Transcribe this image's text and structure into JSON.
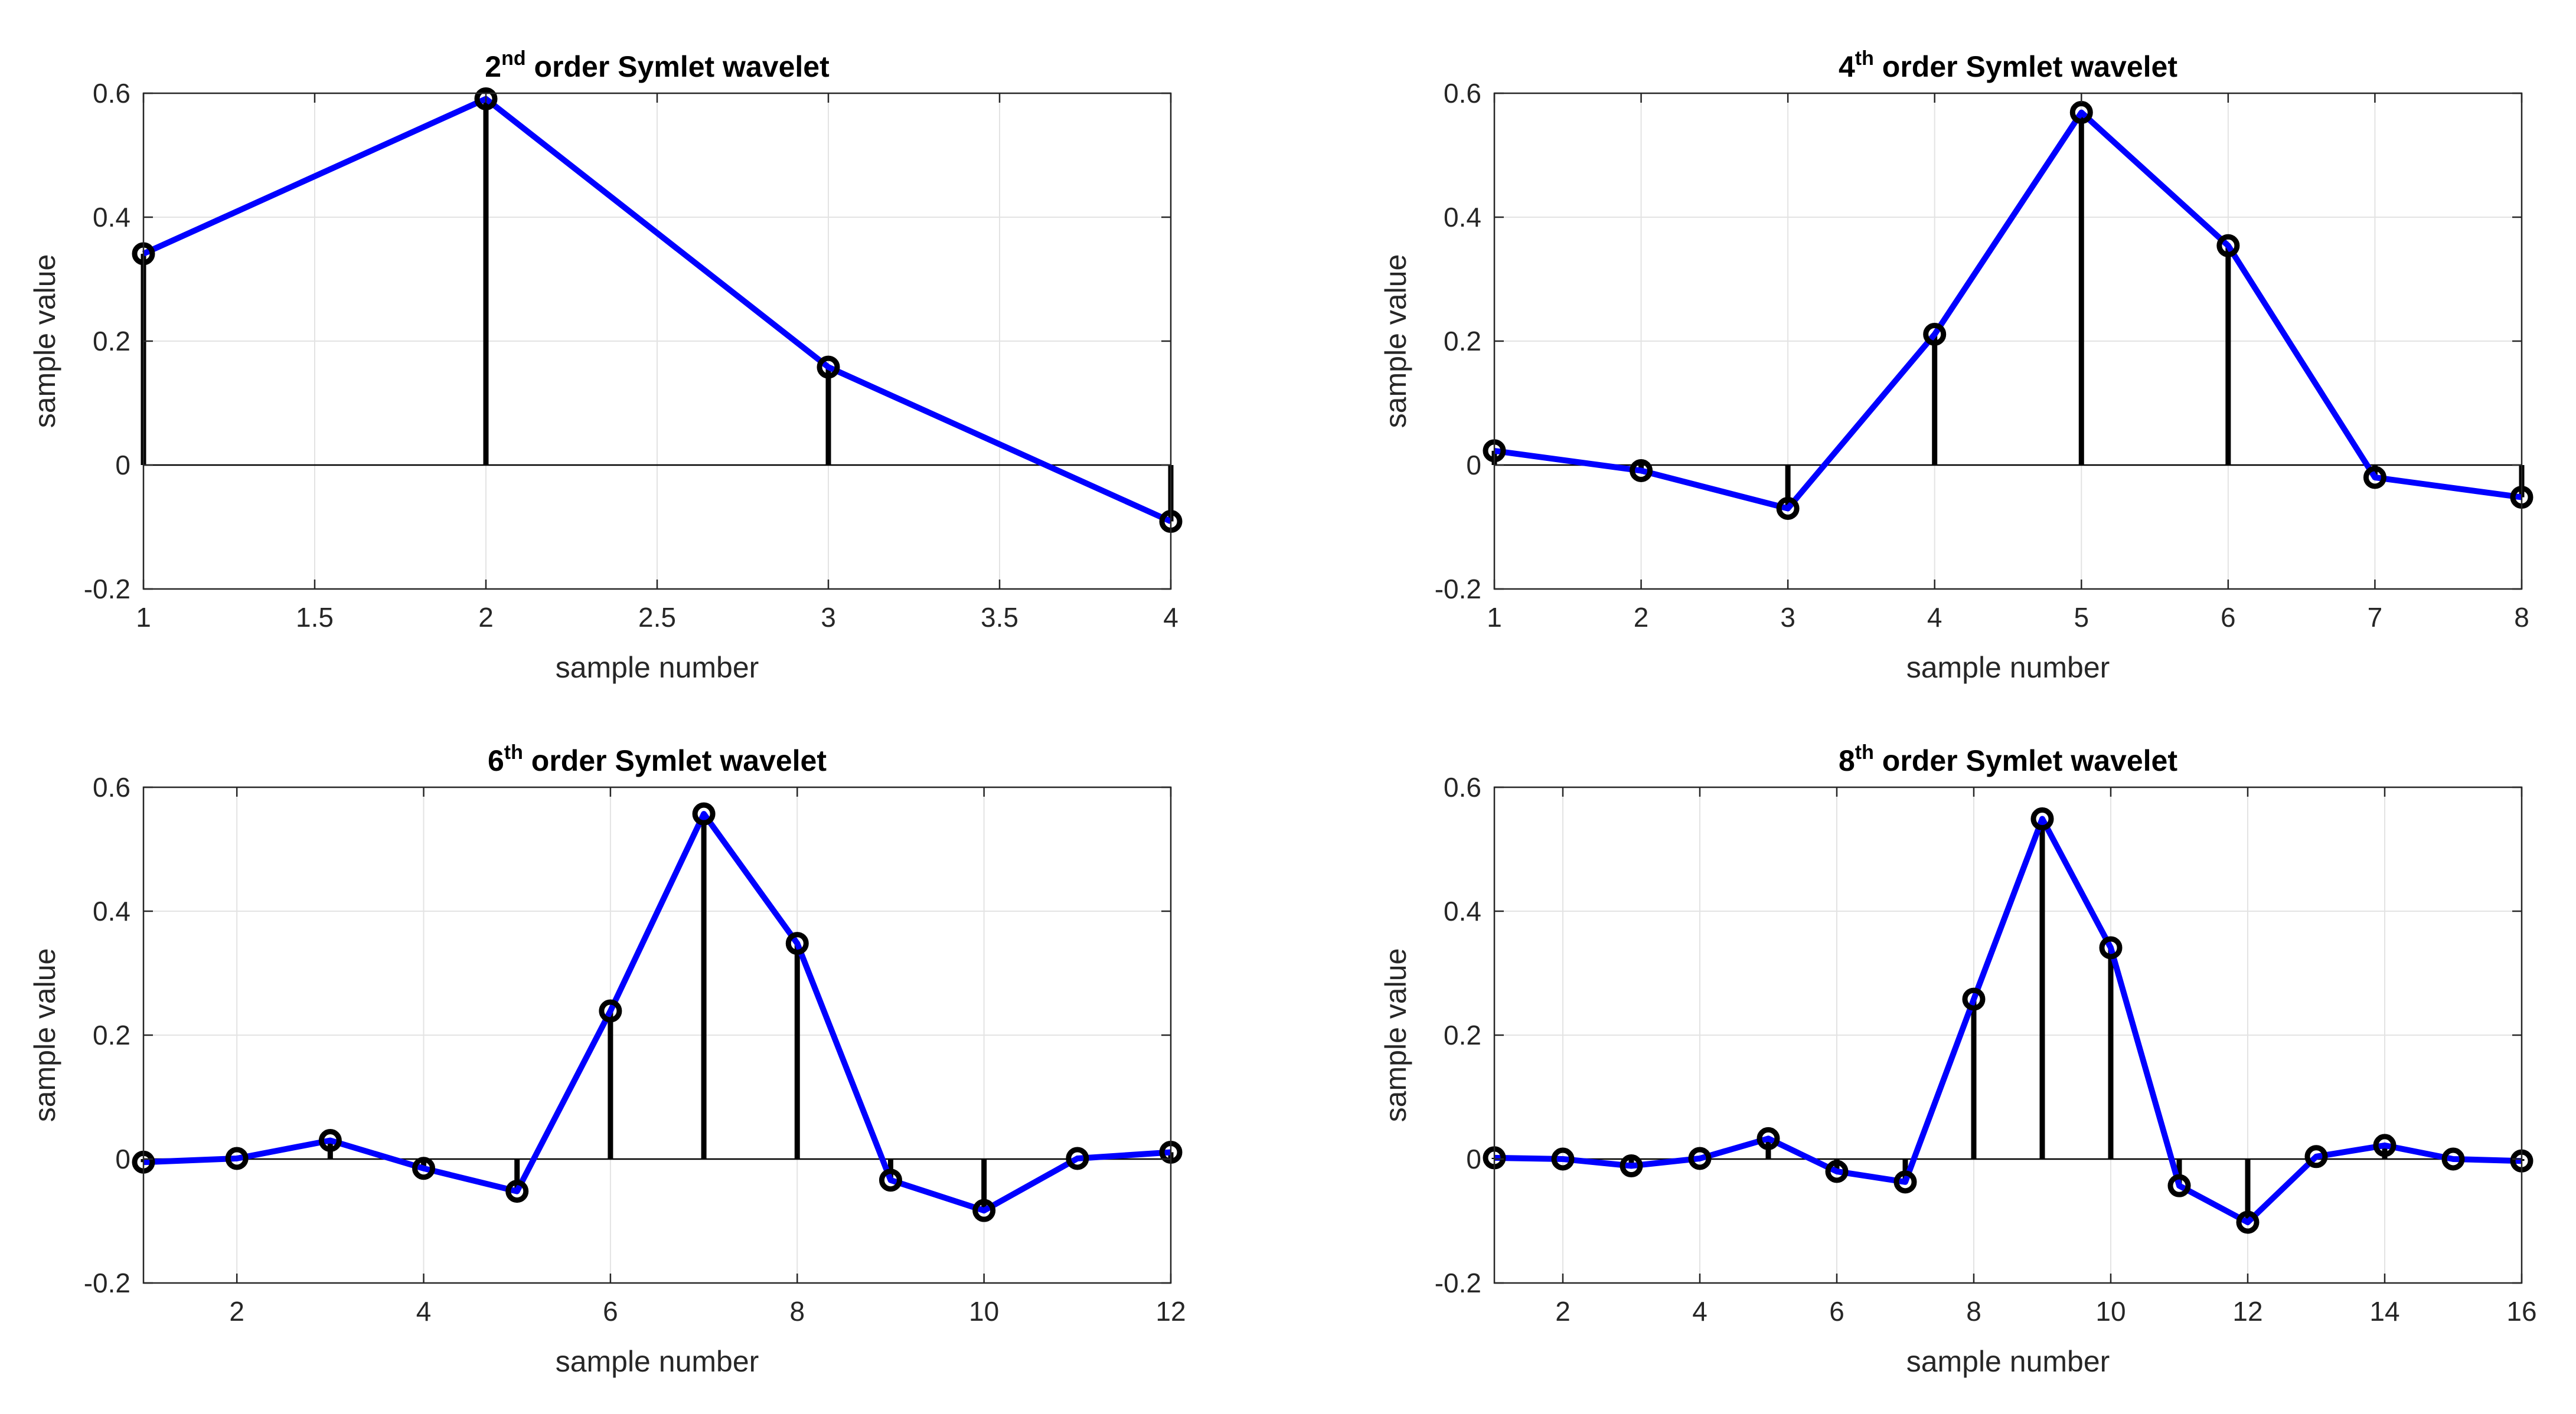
{
  "chart_data": [
    {
      "type": "stem",
      "order_num": "2",
      "order_sup": "nd",
      "title_rest": " order Symlet wavelet",
      "xlabel": "sample number",
      "ylabel": "sample value",
      "xlim": [
        1,
        4
      ],
      "ylim": [
        -0.2,
        0.6
      ],
      "xticks": [
        1,
        1.5,
        2,
        2.5,
        3,
        3.5,
        4
      ],
      "xtick_labels": [
        "1",
        "1.5",
        "2",
        "2.5",
        "3",
        "3.5",
        "4"
      ],
      "yticks": [
        -0.2,
        0,
        0.2,
        0.4,
        0.6
      ],
      "ytick_labels": [
        "-0.2",
        "0",
        "0.2",
        "0.4",
        "0.6"
      ],
      "x": [
        1,
        2,
        3,
        4
      ],
      "values": [
        0.341,
        0.591,
        0.158,
        -0.091
      ],
      "grid": true,
      "line_color": "#0000ff",
      "stem_color": "#000000"
    },
    {
      "type": "stem",
      "order_num": "4",
      "order_sup": "th",
      "title_rest": " order Symlet wavelet",
      "xlabel": "sample number",
      "ylabel": "sample value",
      "xlim": [
        1,
        8
      ],
      "ylim": [
        -0.2,
        0.6
      ],
      "xticks": [
        1,
        2,
        3,
        4,
        5,
        6,
        7,
        8
      ],
      "xtick_labels": [
        "1",
        "2",
        "3",
        "4",
        "5",
        "6",
        "7",
        "8"
      ],
      "yticks": [
        -0.2,
        0,
        0.2,
        0.4,
        0.6
      ],
      "ytick_labels": [
        "-0.2",
        "0",
        "0.2",
        "0.4",
        "0.6"
      ],
      "x": [
        1,
        2,
        3,
        4,
        5,
        6,
        7,
        8
      ],
      "values": [
        0.023,
        -0.009,
        -0.07,
        0.211,
        0.569,
        0.354,
        -0.02,
        -0.052
      ],
      "grid": true,
      "line_color": "#0000ff",
      "stem_color": "#000000"
    },
    {
      "type": "stem",
      "order_num": "6",
      "order_sup": "th",
      "title_rest": " order Symlet wavelet",
      "xlabel": "sample number",
      "ylabel": "sample value",
      "xlim": [
        1,
        12
      ],
      "ylim": [
        -0.2,
        0.6
      ],
      "xticks": [
        2,
        4,
        6,
        8,
        10,
        12
      ],
      "xtick_labels": [
        "2",
        "4",
        "6",
        "8",
        "10",
        "12"
      ],
      "yticks": [
        -0.2,
        0,
        0.2,
        0.4,
        0.6
      ],
      "ytick_labels": [
        "-0.2",
        "0",
        "0.2",
        "0.4",
        "0.6"
      ],
      "x": [
        1,
        2,
        3,
        4,
        5,
        6,
        7,
        8,
        9,
        10,
        11,
        12
      ],
      "values": [
        -0.005,
        0.001,
        0.03,
        -0.015,
        -0.052,
        0.239,
        0.557,
        0.348,
        -0.034,
        -0.083,
        0.001,
        0.011
      ],
      "grid": true,
      "line_color": "#0000ff",
      "stem_color": "#000000"
    },
    {
      "type": "stem",
      "order_num": "8",
      "order_sup": "th",
      "title_rest": " order Symlet wavelet",
      "xlabel": "sample number",
      "ylabel": "sample value",
      "xlim": [
        1,
        16
      ],
      "ylim": [
        -0.2,
        0.6
      ],
      "xticks": [
        2,
        4,
        6,
        8,
        10,
        12,
        14,
        16
      ],
      "xtick_labels": [
        "2",
        "4",
        "6",
        "8",
        "10",
        "12",
        "14",
        "16"
      ],
      "yticks": [
        -0.2,
        0,
        0.2,
        0.4,
        0.6
      ],
      "ytick_labels": [
        "-0.2",
        "0",
        "0.2",
        "0.4",
        "0.6"
      ],
      "x": [
        1,
        2,
        3,
        4,
        5,
        6,
        7,
        8,
        9,
        10,
        11,
        12,
        13,
        14,
        15,
        16
      ],
      "values": [
        0.002,
        0.0,
        -0.011,
        0.001,
        0.033,
        -0.02,
        -0.037,
        0.258,
        0.549,
        0.341,
        -0.043,
        -0.102,
        0.004,
        0.022,
        0.0,
        -0.003
      ],
      "grid": true,
      "line_color": "#0000ff",
      "stem_color": "#000000"
    }
  ]
}
